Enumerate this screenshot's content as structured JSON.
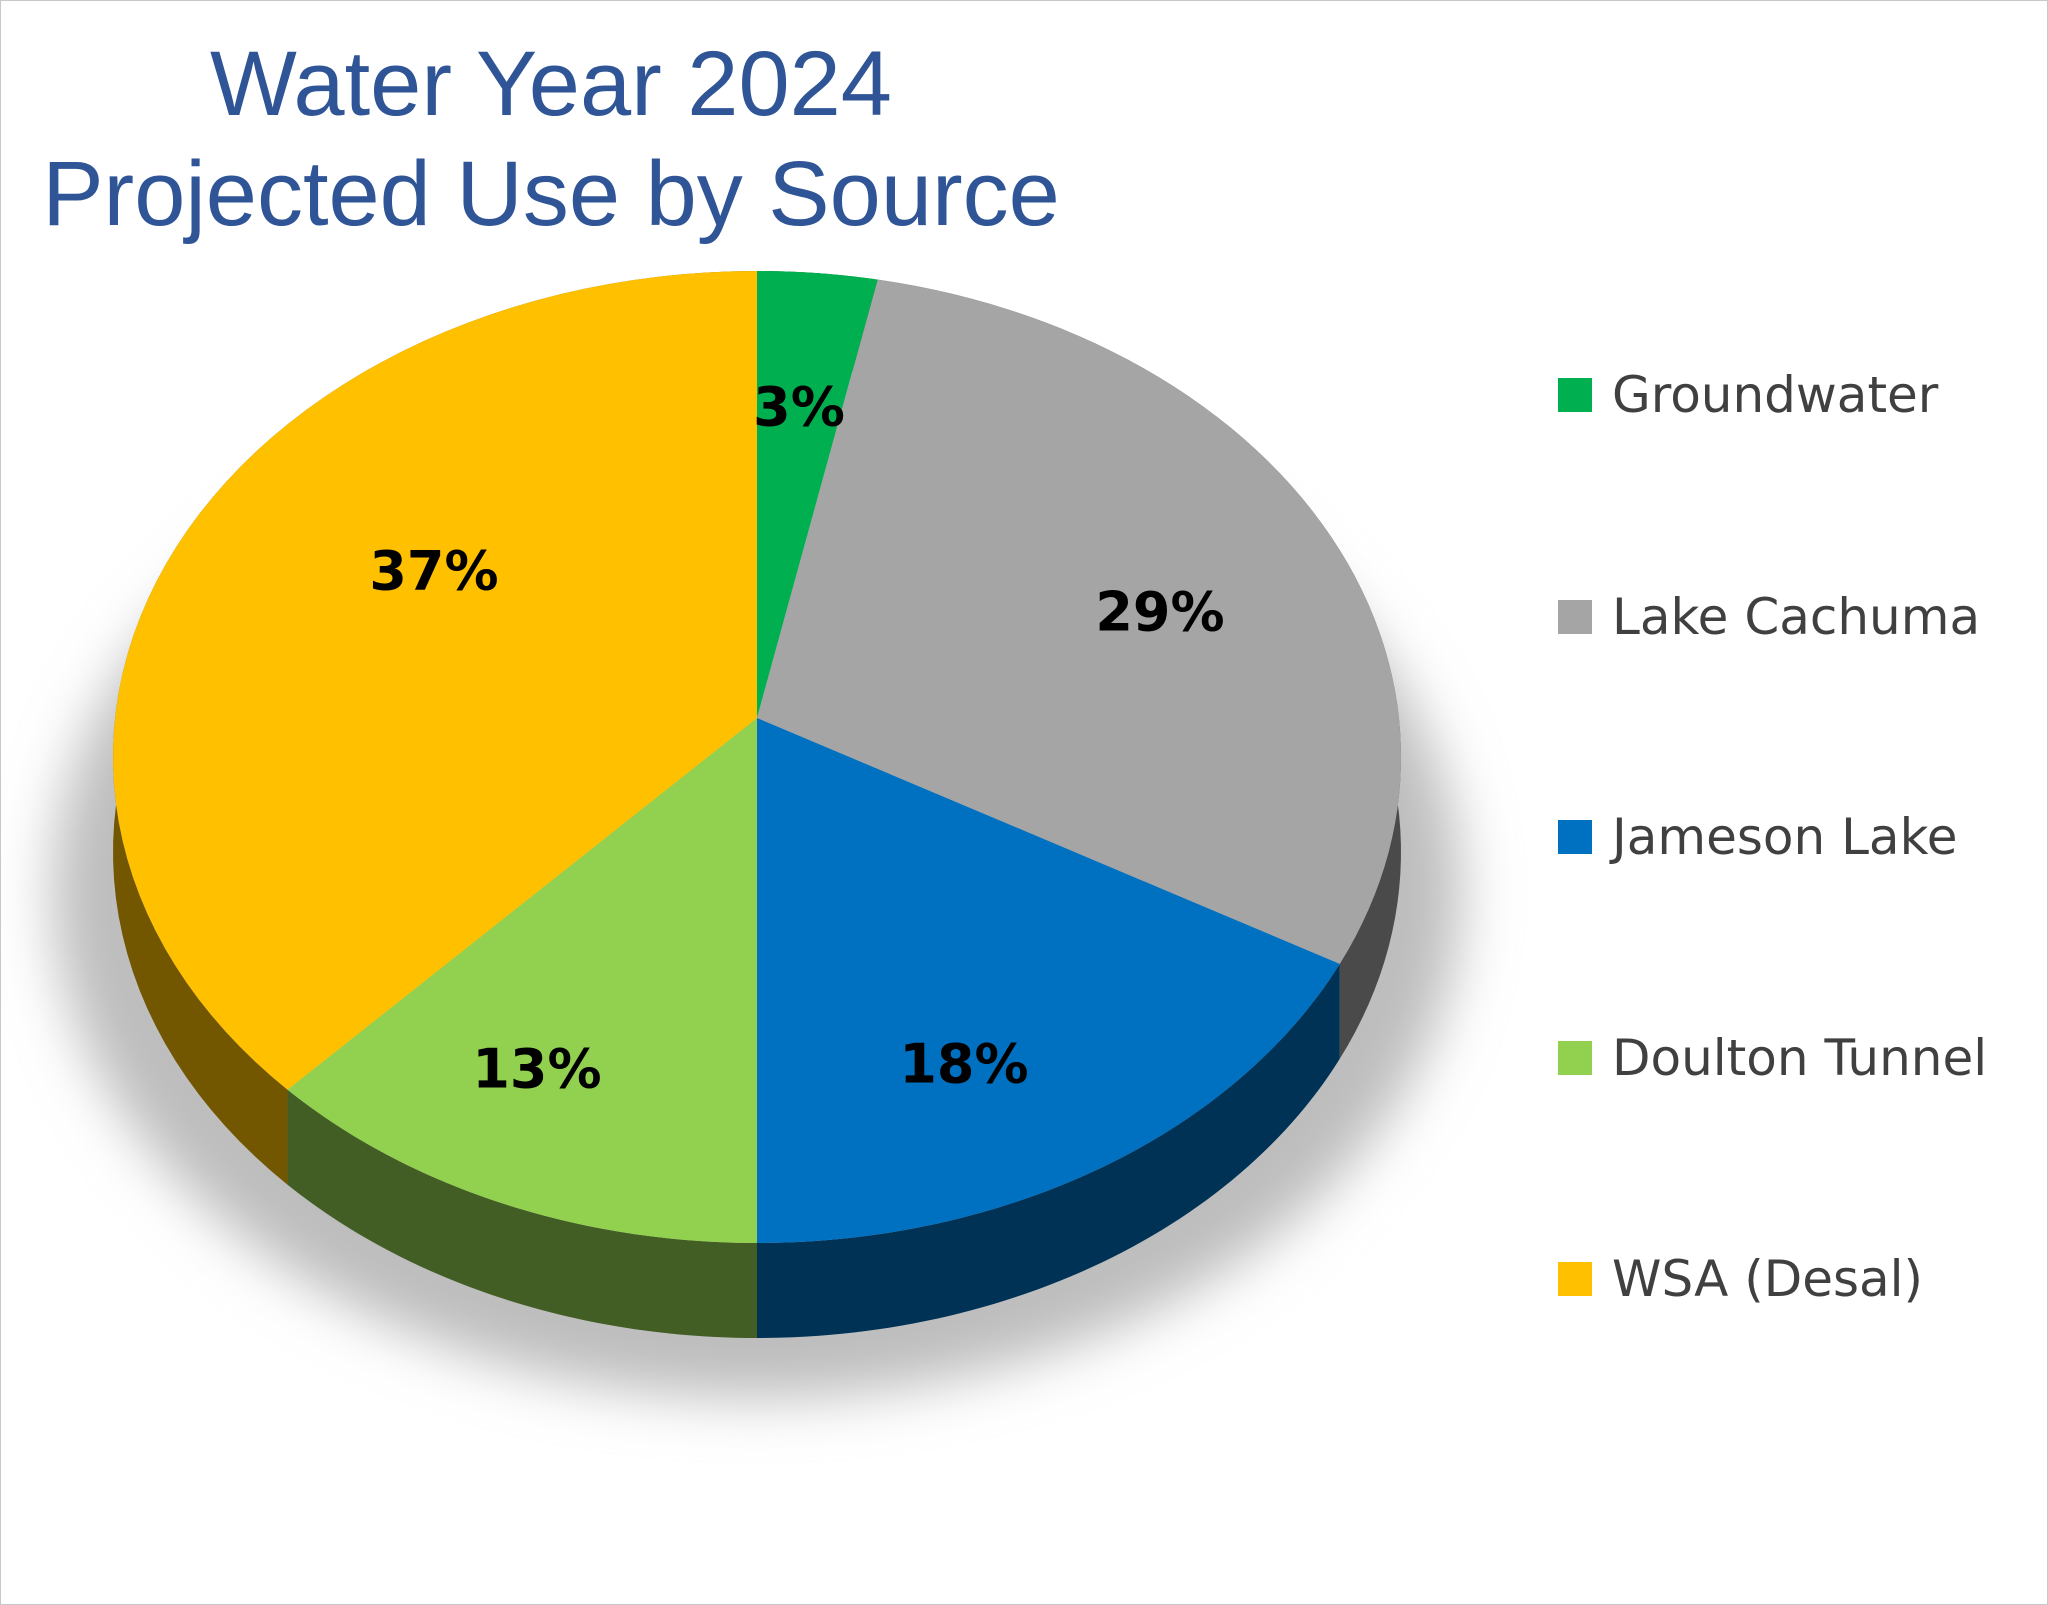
{
  "chart_data": {
    "type": "pie",
    "title": [
      "Water Year 2024",
      "Projected Use by Source"
    ],
    "categories": [
      "Groundwater",
      "Lake Cachuma",
      "Jameson Lake",
      "Doulton Tunnel",
      "WSA (Desal)"
    ],
    "values": [
      3,
      29,
      18,
      13,
      37
    ],
    "data_labels": [
      "3%",
      "29%",
      "18%",
      "13%",
      "37%"
    ],
    "colors": [
      "#00B050",
      "#A5A5A5",
      "#0070C0",
      "#92D050",
      "#FFC000"
    ],
    "legend_position": "right",
    "style": "3d"
  }
}
